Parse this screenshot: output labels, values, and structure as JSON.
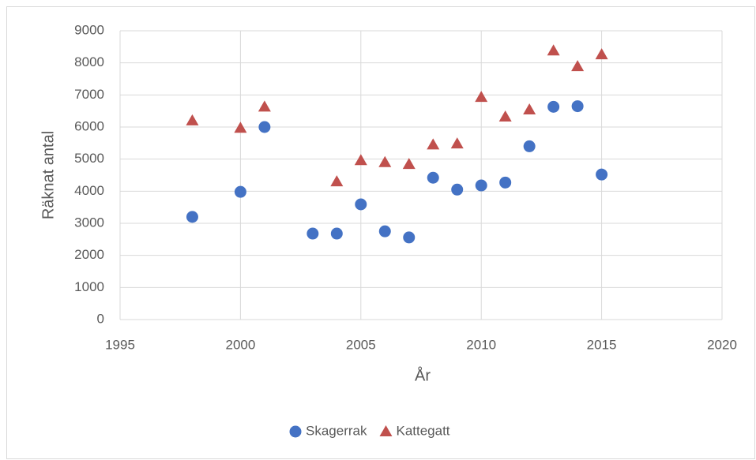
{
  "chart_data": {
    "type": "scatter",
    "x_label": "År",
    "y_label": "Räknat antal",
    "xlim": [
      1995,
      2020
    ],
    "xticks": [
      1995,
      2000,
      2005,
      2010,
      2015,
      2020
    ],
    "ylim": [
      0,
      9000
    ],
    "yticks": [
      0,
      1000,
      2000,
      3000,
      4000,
      5000,
      6000,
      7000,
      8000,
      9000
    ],
    "grid": true,
    "legend": "bottom",
    "series": [
      {
        "name": "Skagerrak",
        "color": "#4472c4",
        "marker": "circle",
        "x": [
          1998,
          2000,
          2001,
          2003,
          2004,
          2005,
          2006,
          2007,
          2008,
          2009,
          2010,
          2011,
          2012,
          2013,
          2014,
          2015
        ],
        "values": [
          3200,
          3980,
          6000,
          2680,
          2680,
          3590,
          2750,
          2560,
          4420,
          4050,
          4180,
          4270,
          5400,
          6630,
          6650,
          4520
        ]
      },
      {
        "name": "Kattegatt",
        "color": "#c0504d",
        "marker": "triangle",
        "x": [
          1998,
          2000,
          2001,
          2004,
          2005,
          2006,
          2007,
          2008,
          2009,
          2010,
          2011,
          2012,
          2013,
          2014,
          2015
        ],
        "values": [
          6200,
          5970,
          6630,
          4300,
          4960,
          4900,
          4840,
          5450,
          5480,
          6930,
          6320,
          6540,
          8380,
          7890,
          8260
        ]
      }
    ]
  }
}
